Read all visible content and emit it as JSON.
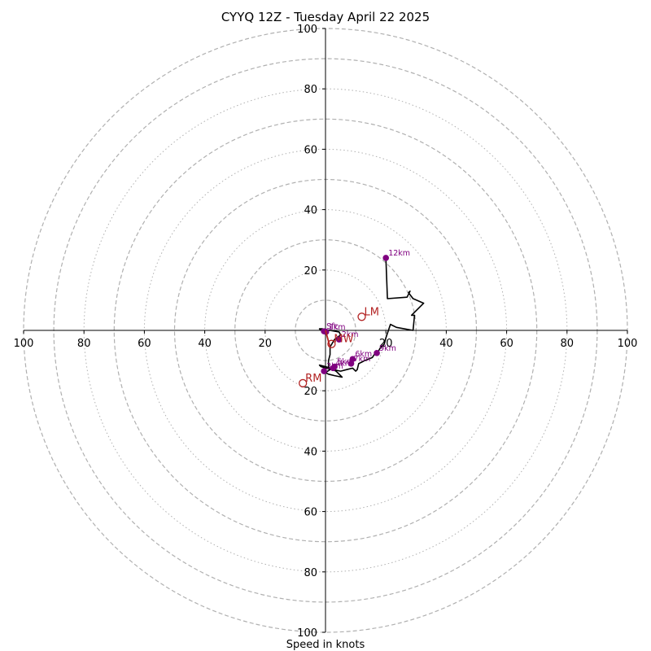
{
  "chart_data": {
    "type": "scatter",
    "title": "CYYQ 12Z - Tuesday April 22 2025",
    "xlabel": "Speed in knots",
    "ylabel": "",
    "axis_range": [
      -100,
      100
    ],
    "ring_values_dashed": [
      10,
      30,
      50,
      70,
      90,
      100
    ],
    "ring_values_dotted": [
      20,
      40,
      60,
      80
    ],
    "x_tick_labels": [
      "100",
      "80",
      "60",
      "40",
      "20",
      "20",
      "40",
      "60",
      "80",
      "100"
    ],
    "x_tick_values": [
      -100,
      -80,
      -60,
      -40,
      -20,
      20,
      40,
      60,
      80,
      100
    ],
    "y_tick_labels": [
      "100",
      "80",
      "60",
      "40",
      "20",
      "20",
      "40",
      "60",
      "80",
      "100"
    ],
    "y_tick_values": [
      100,
      80,
      60,
      40,
      20,
      -20,
      -40,
      -60,
      -80,
      -100
    ],
    "grid": true,
    "colors": {
      "hodograph": "#000000",
      "heights": "#800080",
      "storm_motion": "#b22222",
      "grid": "#b0b0b0"
    },
    "hodograph": {
      "x": [
        -1.5,
        -2.0,
        -1.0,
        1.5,
        4.5,
        5.0,
        3.0,
        1.5,
        1.5,
        1.0,
        1.0,
        1.5,
        0.0,
        1.0,
        3.0,
        5.5,
        3.5,
        1.5,
        0.0,
        -2.0,
        -1.5,
        0.0,
        2.5,
        5.0,
        7.0,
        9.0,
        10.0,
        10.5,
        11.0,
        12.0,
        13.0,
        15.5,
        16.5,
        17.0,
        18.0,
        19.5,
        20.0,
        21.5,
        23.5,
        29.0,
        29.5,
        28.5,
        32.5,
        29.0,
        27.5,
        28.0,
        27.0,
        20.5,
        20.0
      ],
      "y": [
        0.0,
        0.5,
        0.5,
        0.0,
        -0.5,
        -1.5,
        -3.0,
        -5.5,
        -8.0,
        -10.0,
        -12.0,
        -13.0,
        -14.0,
        -14.5,
        -15.0,
        -15.5,
        -13.5,
        -12.5,
        -12.0,
        -11.5,
        -12.0,
        -12.5,
        -13.0,
        -13.5,
        -13.0,
        -12.5,
        -13.5,
        -13.0,
        -11.0,
        -10.5,
        -10.0,
        -9.0,
        -7.5,
        -8.0,
        -6.0,
        -4.5,
        -2.5,
        2.0,
        1.0,
        0.0,
        5.0,
        5.0,
        9.0,
        10.5,
        12.5,
        13.0,
        11.0,
        10.5,
        24.0
      ]
    },
    "height_markers": [
      {
        "label": "Sfc",
        "x": -0.5,
        "y": -0.3
      },
      {
        "label": "1km",
        "x": 0.2,
        "y": -0.5
      },
      {
        "label": "2km",
        "x": 4.5,
        "y": -3.0
      },
      {
        "label": "3km",
        "x": -0.5,
        "y": -13.5
      },
      {
        "label": "4km",
        "x": 2.5,
        "y": -12.5
      },
      {
        "label": "5km",
        "x": 3.0,
        "y": -12.0
      },
      {
        "label": "6km",
        "x": 9.0,
        "y": -9.5
      },
      {
        "label": "7km",
        "x": 8.5,
        "y": -11.0
      },
      {
        "label": "9km",
        "x": 17.0,
        "y": -7.5
      },
      {
        "label": "12km",
        "x": 20.0,
        "y": 24.0
      }
    ],
    "storm_motion": [
      {
        "label": "LM",
        "x": 12.0,
        "y": 4.5
      },
      {
        "label": "MW",
        "x": 2.0,
        "y": -4.5
      },
      {
        "label": "RM",
        "x": -7.5,
        "y": -17.5
      }
    ],
    "storm_vector": {
      "x": 1.5,
      "y": -5.5
    }
  }
}
